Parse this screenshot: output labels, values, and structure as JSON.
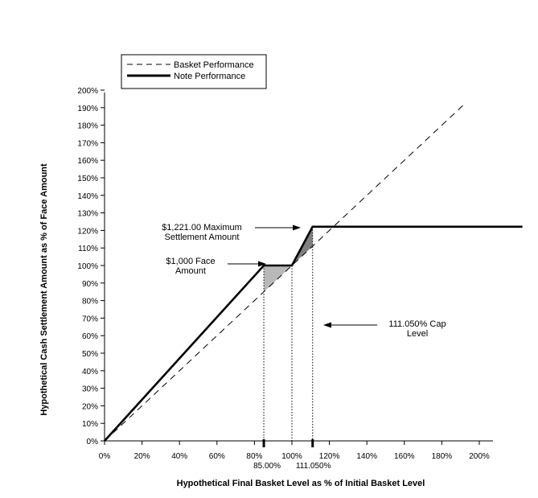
{
  "chart_data": {
    "type": "line",
    "xlabel": "Hypothetical Final Basket Level as % of Initial Basket Level",
    "ylabel": "Hypothetical Cash Settlement Amount as % of Face Amount",
    "xlim": [
      0,
      200
    ],
    "ylim": [
      0,
      200
    ],
    "x_ticks": [
      0,
      20,
      40,
      60,
      80,
      100,
      120,
      140,
      160,
      180,
      200
    ],
    "y_ticks": [
      0,
      10,
      20,
      30,
      40,
      50,
      60,
      70,
      80,
      90,
      100,
      110,
      120,
      130,
      140,
      150,
      160,
      170,
      180,
      190,
      200
    ],
    "x_tick_labels": [
      "0%",
      "20%",
      "40%",
      "60%",
      "80%",
      "100%",
      "120%",
      "140%",
      "160%",
      "180%",
      "200%"
    ],
    "y_tick_labels": [
      "0%",
      "10%",
      "20%",
      "30%",
      "40%",
      "50%",
      "60%",
      "70%",
      "80%",
      "90%",
      "100%",
      "110%",
      "120%",
      "130%",
      "140%",
      "150%",
      "160%",
      "170%",
      "180%",
      "190%",
      "200%"
    ],
    "extra_x_ticks": [
      {
        "x": 85.0,
        "label": "85.00%"
      },
      {
        "x": 111.05,
        "label": "111.050%"
      }
    ],
    "legend": {
      "position": "top-left",
      "entries": [
        {
          "label": "Basket Performance",
          "style": "dashed"
        },
        {
          "label": "Note Performance",
          "style": "solid-thick"
        }
      ]
    },
    "series": [
      {
        "name": "Basket Performance",
        "style": "dashed",
        "points": [
          [
            0,
            0
          ],
          [
            193,
            193
          ]
        ]
      },
      {
        "name": "Note Performance",
        "style": "solid-thick",
        "points": [
          [
            0,
            0
          ],
          [
            85,
            100
          ],
          [
            100,
            100
          ],
          [
            111.05,
            122.1
          ],
          [
            223,
            122.1
          ]
        ]
      }
    ],
    "shaded_regions": [
      {
        "points": [
          [
            85,
            100
          ],
          [
            85,
            85
          ],
          [
            100,
            100
          ]
        ],
        "color": "#b8b8b8"
      },
      {
        "points": [
          [
            100,
            100
          ],
          [
            111.05,
            122.1
          ],
          [
            111.05,
            111.05
          ]
        ],
        "color": "#808080"
      }
    ],
    "vertical_lines": [
      85.0,
      100,
      111.05
    ],
    "annotations": [
      {
        "lines": [
          "$1,221.00 Maximum",
          "Settlement Amount"
        ],
        "target": [
          111.05,
          122.1
        ]
      },
      {
        "lines": [
          "$1,000 Face",
          "Amount"
        ],
        "target": [
          85,
          100
        ]
      },
      {
        "lines": [
          "111.050% Cap",
          "Level"
        ],
        "target": [
          111.05,
          65
        ]
      }
    ],
    "grid": false
  }
}
